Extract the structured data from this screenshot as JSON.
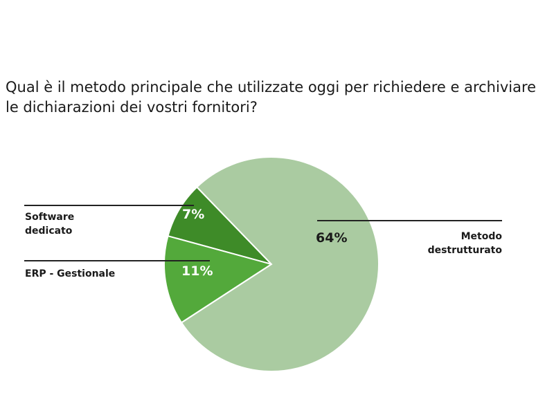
{
  "chart_data": {
    "type": "pie",
    "title": "Qual è il metodo principale che utilizzate oggi per richiedere e archiviare le dichiarazioni dei vostri fornitori?",
    "slices": [
      {
        "label": "Software dedicato",
        "value": 7,
        "value_label": "7%",
        "color": "#3e8b28"
      },
      {
        "label": "ERP - Gestionale",
        "value": 11,
        "value_label": "11%",
        "color": "#53a93b"
      },
      {
        "label": "Metodo destrutturato",
        "value": 64,
        "value_label": "64%",
        "color": "#aacba1"
      }
    ],
    "legend": "outside labels with leader lines"
  }
}
